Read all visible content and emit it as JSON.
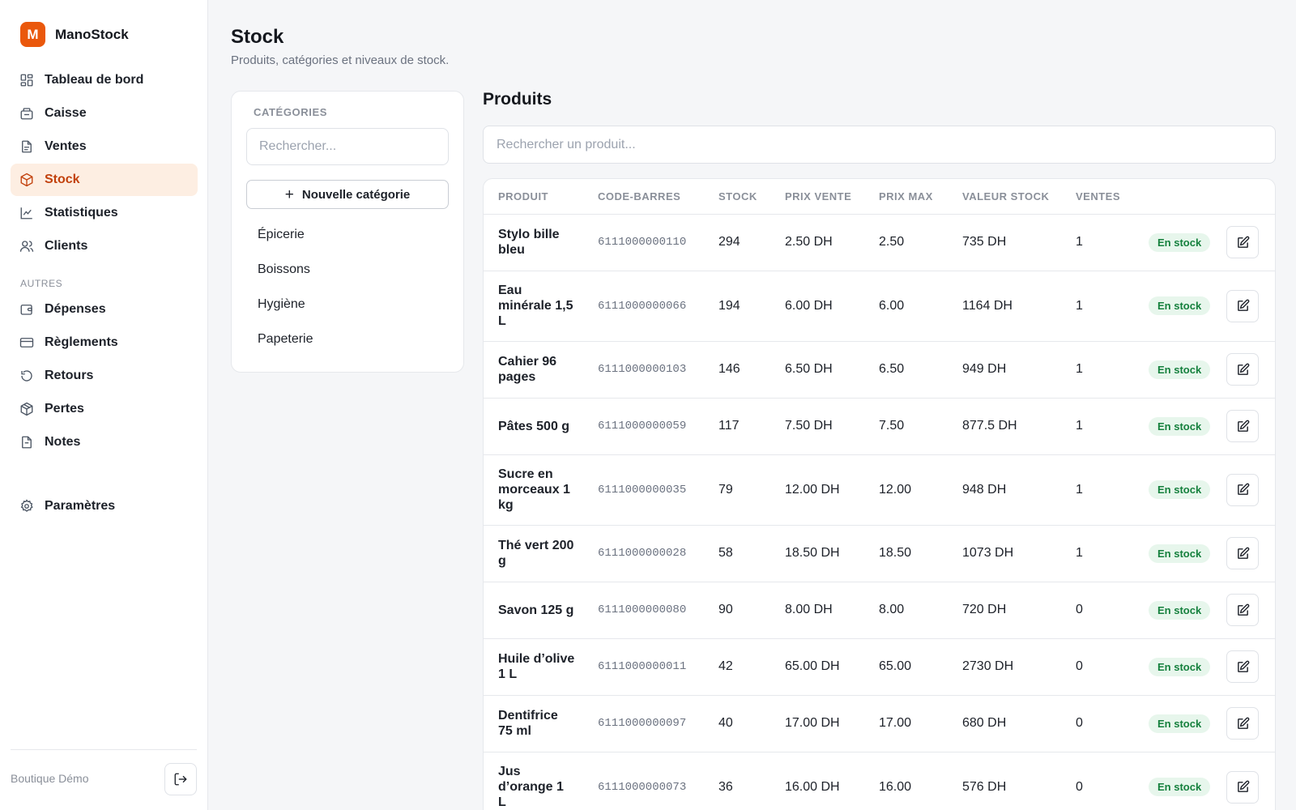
{
  "brand": {
    "logo_letter": "M",
    "name": "ManoStock",
    "accent": "#ea580c"
  },
  "nav": {
    "main": [
      {
        "id": "dashboard",
        "label": "Tableau de bord",
        "icon": "dashboard-icon",
        "active": false
      },
      {
        "id": "caisse",
        "label": "Caisse",
        "icon": "register-icon",
        "active": false
      },
      {
        "id": "ventes",
        "label": "Ventes",
        "icon": "receipt-icon",
        "active": false
      },
      {
        "id": "stock",
        "label": "Stock",
        "icon": "box-icon",
        "active": true
      },
      {
        "id": "statistiques",
        "label": "Statistiques",
        "icon": "chart-icon",
        "active": false
      },
      {
        "id": "clients",
        "label": "Clients",
        "icon": "users-icon",
        "active": false
      }
    ],
    "section_label": "AUTRES",
    "others": [
      {
        "id": "depenses",
        "label": "Dépenses",
        "icon": "wallet-icon"
      },
      {
        "id": "reglements",
        "label": "Règlements",
        "icon": "card-icon"
      },
      {
        "id": "retours",
        "label": "Retours",
        "icon": "return-icon"
      },
      {
        "id": "pertes",
        "label": "Pertes",
        "icon": "package-icon"
      },
      {
        "id": "notes",
        "label": "Notes",
        "icon": "note-icon"
      }
    ],
    "settings": {
      "label": "Paramètres",
      "icon": "gear-icon"
    }
  },
  "footer": {
    "store_name": "Boutique Démo",
    "logout_icon": "logout-icon"
  },
  "header": {
    "title": "Stock",
    "subtitle": "Produits, catégories et niveaux de stock."
  },
  "categories": {
    "heading": "CATÉGORIES",
    "search_placeholder": "Rechercher...",
    "new_button": "Nouvelle catégorie",
    "items": [
      "Épicerie",
      "Boissons",
      "Hygiène",
      "Papeterie"
    ]
  },
  "products": {
    "title": "Produits",
    "search_placeholder": "Rechercher un produit...",
    "columns": [
      "PRODUIT",
      "CODE-BARRES",
      "STOCK",
      "PRIX VENTE",
      "PRIX MAX",
      "VALEUR STOCK",
      "VENTES"
    ],
    "rows": [
      {
        "name": "Stylo bille bleu",
        "barcode": "6111000000110",
        "stock": "294",
        "price": "2.50 DH",
        "max": "2.50",
        "value": "735 DH",
        "sales": "1",
        "status": "En stock"
      },
      {
        "name": "Eau minérale 1,5 L",
        "barcode": "6111000000066",
        "stock": "194",
        "price": "6.00 DH",
        "max": "6.00",
        "value": "1164 DH",
        "sales": "1",
        "status": "En stock"
      },
      {
        "name": "Cahier 96 pages",
        "barcode": "6111000000103",
        "stock": "146",
        "price": "6.50 DH",
        "max": "6.50",
        "value": "949 DH",
        "sales": "1",
        "status": "En stock"
      },
      {
        "name": "Pâtes 500 g",
        "barcode": "6111000000059",
        "stock": "117",
        "price": "7.50 DH",
        "max": "7.50",
        "value": "877.5 DH",
        "sales": "1",
        "status": "En stock"
      },
      {
        "name": "Sucre en morceaux 1 kg",
        "barcode": "6111000000035",
        "stock": "79",
        "price": "12.00 DH",
        "max": "12.00",
        "value": "948 DH",
        "sales": "1",
        "status": "En stock"
      },
      {
        "name": "Thé vert 200 g",
        "barcode": "6111000000028",
        "stock": "58",
        "price": "18.50 DH",
        "max": "18.50",
        "value": "1073 DH",
        "sales": "1",
        "status": "En stock"
      },
      {
        "name": "Savon 125 g",
        "barcode": "6111000000080",
        "stock": "90",
        "price": "8.00 DH",
        "max": "8.00",
        "value": "720 DH",
        "sales": "0",
        "status": "En stock"
      },
      {
        "name": "Huile d’olive 1 L",
        "barcode": "6111000000011",
        "stock": "42",
        "price": "65.00 DH",
        "max": "65.00",
        "value": "2730 DH",
        "sales": "0",
        "status": "En stock"
      },
      {
        "name": "Dentifrice 75 ml",
        "barcode": "6111000000097",
        "stock": "40",
        "price": "17.00 DH",
        "max": "17.00",
        "value": "680 DH",
        "sales": "0",
        "status": "En stock"
      },
      {
        "name": "Jus d’orange 1 L",
        "barcode": "6111000000073",
        "stock": "36",
        "price": "16.00 DH",
        "max": "16.00",
        "value": "576 DH",
        "sales": "0",
        "status": "En stock"
      }
    ]
  }
}
